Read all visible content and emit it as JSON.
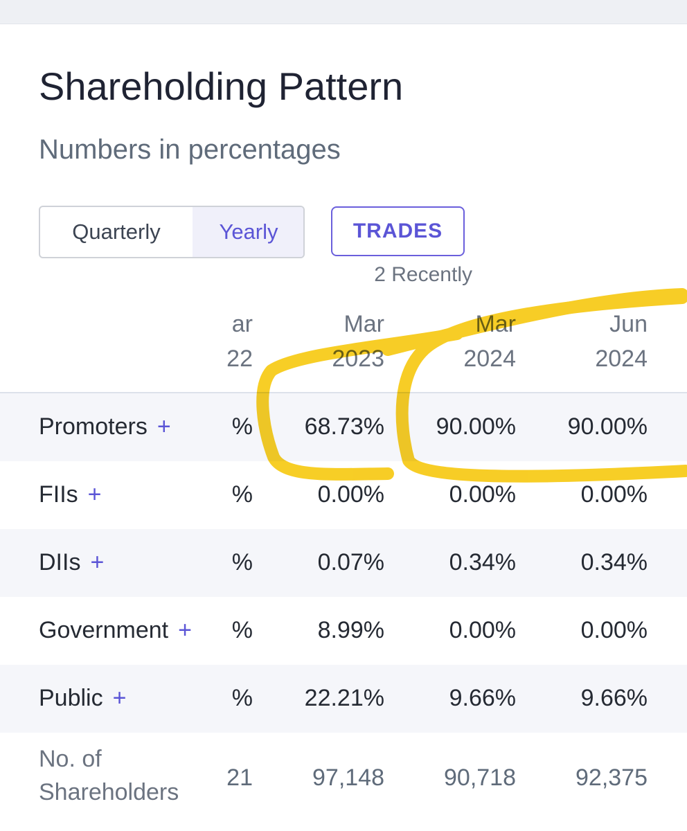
{
  "header": {
    "title": "Shareholding Pattern",
    "subtitle": "Numbers in percentages"
  },
  "tabs": [
    "Quarterly",
    "Yearly"
  ],
  "active_tab": "Yearly",
  "trades_button": {
    "label": "TRADES",
    "note": "2 Recently"
  },
  "table": {
    "expand_symbol": "+",
    "columns": [
      {
        "month": "ar",
        "year": "22"
      },
      {
        "month": "Mar",
        "year": "2023"
      },
      {
        "month": "Mar",
        "year": "2024"
      },
      {
        "month": "Jun",
        "year": "2024"
      }
    ],
    "rows": [
      {
        "label": "Promoters",
        "expandable": true,
        "cells": [
          "%",
          "68.73%",
          "90.00%",
          "90.00%"
        ]
      },
      {
        "label": "FIIs",
        "expandable": true,
        "cells": [
          "%",
          "0.00%",
          "0.00%",
          "0.00%"
        ]
      },
      {
        "label": "DIIs",
        "expandable": true,
        "cells": [
          "%",
          "0.07%",
          "0.34%",
          "0.34%"
        ]
      },
      {
        "label": "Government",
        "expandable": true,
        "cells": [
          "%",
          "8.99%",
          "0.00%",
          "0.00%"
        ]
      },
      {
        "label": "Public",
        "expandable": true,
        "cells": [
          "%",
          "22.21%",
          "9.66%",
          "9.66%"
        ]
      },
      {
        "label": "No. of Shareholders",
        "expandable": false,
        "cells": [
          "21",
          "97,148",
          "90,718",
          "92,375"
        ]
      }
    ]
  }
}
